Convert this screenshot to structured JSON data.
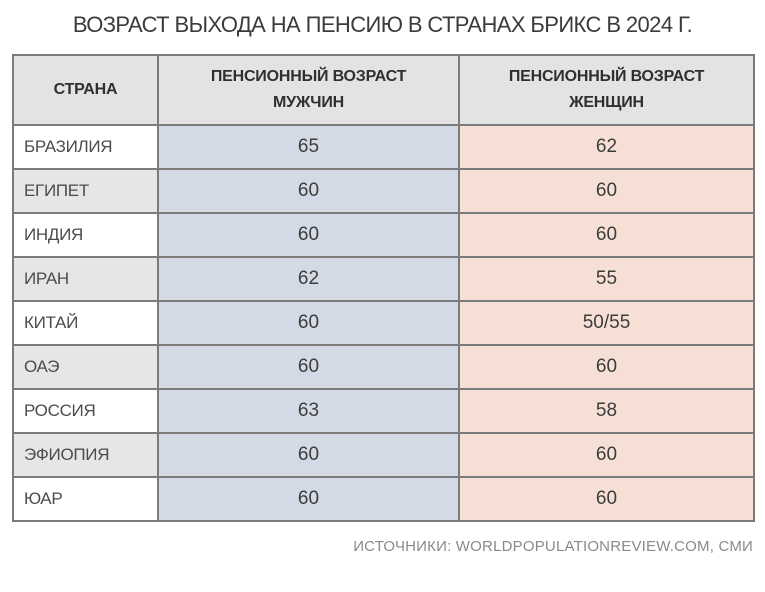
{
  "title": "ВОЗРАСТ ВЫХОДА НА ПЕНСИЮ В СТРАНАХ БРИКС В 2024 Г.",
  "table": {
    "header": {
      "country": "СТРАНА",
      "men": "ПЕНСИОННЫЙ ВОЗРАСТ\nМУЖЧИН",
      "women": "ПЕНСИОННЫЙ ВОЗРАСТ\nЖЕНЩИН"
    },
    "rows": [
      {
        "country": "БРАЗИЛИЯ",
        "men_age": "65",
        "women_age": "62"
      },
      {
        "country": "ЕГИПЕТ",
        "men_age": "60",
        "women_age": "60"
      },
      {
        "country": "ИНДИЯ",
        "men_age": "60",
        "women_age": "60"
      },
      {
        "country": "ИРАН",
        "men_age": "62",
        "women_age": "55"
      },
      {
        "country": "КИТАЙ",
        "men_age": "60",
        "women_age": "50/55"
      },
      {
        "country": "ОАЭ",
        "men_age": "60",
        "women_age": "60"
      },
      {
        "country": "РОССИЯ",
        "men_age": "63",
        "women_age": "58"
      },
      {
        "country": "ЭФИОПИЯ",
        "men_age": "60",
        "women_age": "60"
      },
      {
        "country": "ЮАР",
        "men_age": "60",
        "women_age": "60"
      }
    ]
  },
  "footer": {
    "source": "ИСТОЧНИКИ: WORLDPOPULATIONREVIEW.COM, СМИ"
  },
  "colors": {
    "header_bg": "#e3e3e3",
    "alt_row_bg": "#e6e6e6",
    "men_column_bg": "#d3dae5",
    "women_column_bg": "#f6e0d5",
    "border": "#7b7b7b"
  },
  "chart_data": {
    "type": "table",
    "title": "ВОЗРАСТ ВЫХОДА НА ПЕНСИЮ В СТРАНАХ БРИКС В 2024 Г.",
    "columns": [
      "СТРАНА",
      "ПЕНСИОННЫЙ ВОЗРАСТ МУЖЧИН",
      "ПЕНСИОННЫЙ ВОЗРАСТ ЖЕНЩИН"
    ],
    "rows": [
      [
        "БРАЗИЛИЯ",
        "65",
        "62"
      ],
      [
        "ЕГИПЕТ",
        "60",
        "60"
      ],
      [
        "ИНДИЯ",
        "60",
        "60"
      ],
      [
        "ИРАН",
        "62",
        "55"
      ],
      [
        "КИТАЙ",
        "60",
        "50/55"
      ],
      [
        "ОАЭ",
        "60",
        "60"
      ],
      [
        "РОССИЯ",
        "63",
        "58"
      ],
      [
        "ЭФИОПИЯ",
        "60",
        "60"
      ],
      [
        "ЮАР",
        "60",
        "60"
      ]
    ],
    "source": "ИСТОЧНИКИ: WORLDPOPULATIONREVIEW.COM, СМИ",
    "column_colors": [
      "#ffffff/#e6e6e6",
      "#d3dae5",
      "#f6e0d5"
    ]
  }
}
